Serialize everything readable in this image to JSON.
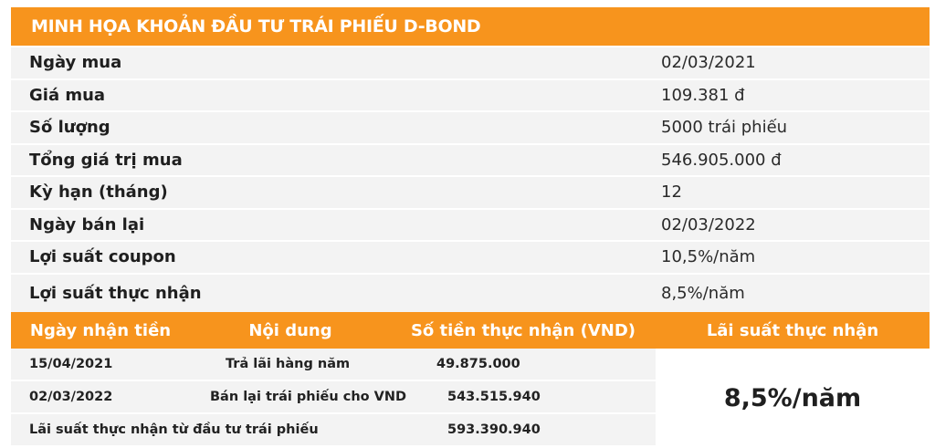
{
  "title": "MINH HỌA KHOẢN ĐẦU TƯ TRÁI PHIẾU D-BOND",
  "info_rows": [
    {
      "label": "Ngày mua",
      "value": "02/03/2021"
    },
    {
      "label": "Giá mua",
      "value": "109.381 đ"
    },
    {
      "label": "Số lượng",
      "value": "5000 trái phiếu"
    },
    {
      "label": "Tổng giá trị mua",
      "value": "546.905.000 đ"
    },
    {
      "label": "Kỳ hạn (tháng)",
      "value": "12"
    },
    {
      "label": "Ngày bán lại",
      "value": "02/03/2022"
    },
    {
      "label": "Lợi suất coupon",
      "value": "10,5%/năm"
    },
    {
      "label": "Lợi suất thực nhận",
      "value": "8,5%/năm"
    }
  ],
  "table": {
    "headers": [
      "Ngày nhận tiền",
      "Nội dung",
      "Số tiền thực nhận (VND)",
      "Lãi suất thực nhận"
    ],
    "rows": [
      {
        "date": "15/04/2021",
        "content": "Trả lãi hàng năm",
        "amount": "49.875.000"
      },
      {
        "date": "02/03/2022",
        "content": "Bán lại trái phiếu cho VND",
        "amount": "543.515.940"
      },
      {
        "summary": "Lãi suất thực nhận từ đầu tư trái phiếu",
        "amount": "593.390.940"
      }
    ],
    "rate": "8,5%/năm"
  },
  "colors": {
    "accent": "#f7941d",
    "row_bg": "#f3f3f3",
    "header_text": "#ffffff"
  }
}
